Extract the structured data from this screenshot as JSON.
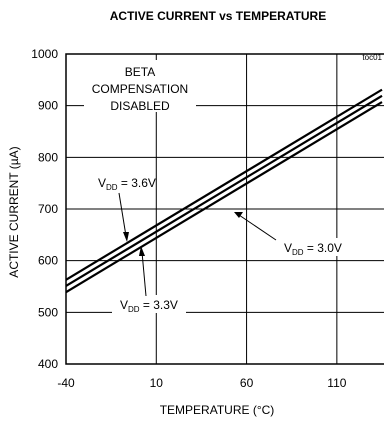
{
  "chart_data": {
    "type": "line",
    "title": "ACTIVE CURRENT vs TEMPERATURE",
    "source_tag": "toc01",
    "xlabel": "TEMPERATURE (°C)",
    "ylabel": "ACTIVE CURRENT (µA)",
    "xlim": [
      -40,
      135
    ],
    "ylim": [
      400,
      1000
    ],
    "xticks": [
      -40,
      10,
      60,
      110
    ],
    "yticks": [
      400,
      500,
      600,
      700,
      800,
      900,
      1000
    ],
    "grid": true,
    "annotation_lines": [
      "BETA",
      "COMPENSATION",
      "DISABLED"
    ],
    "series": [
      {
        "name": "VDD = 3.6V",
        "label_main": "V",
        "label_sub": "DD",
        "label_tail": " = 3.6V",
        "x": [
          -40,
          135
        ],
        "y": [
          563,
          931
        ]
      },
      {
        "name": "VDD = 3.3V",
        "label_main": "V",
        "label_sub": "DD",
        "label_tail": " = 3.3V",
        "x": [
          -40,
          135
        ],
        "y": [
          551,
          919
        ]
      },
      {
        "name": "VDD = 3.0V",
        "label_main": "V",
        "label_sub": "DD",
        "label_tail": " = 3.0V",
        "x": [
          -40,
          135
        ],
        "y": [
          539,
          907
        ]
      }
    ]
  }
}
